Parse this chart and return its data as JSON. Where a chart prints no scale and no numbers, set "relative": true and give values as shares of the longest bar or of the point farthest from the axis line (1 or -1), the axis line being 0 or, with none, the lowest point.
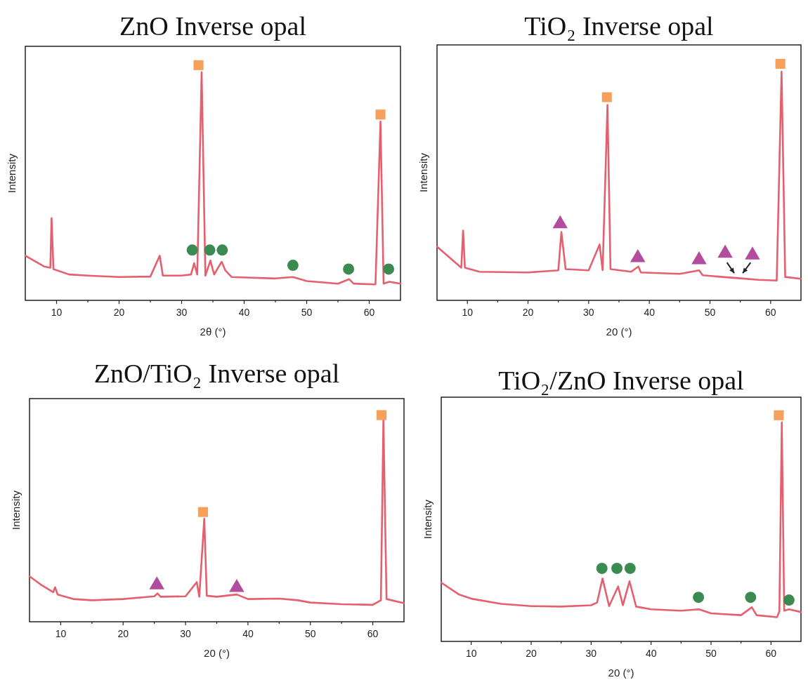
{
  "chart_data": [
    {
      "type": "line",
      "title": "ZnO Inverse opal",
      "xlabel": "2θ (°)",
      "ylabel": "Intensity",
      "relative": true,
      "tick_labels": "x",
      "xlim": [
        5,
        65
      ],
      "xticks": [
        10,
        {
          "value": 15,
          "label": null
        },
        20,
        {
          "value": 25,
          "label": null
        },
        30,
        {
          "value": 35,
          "label": null
        },
        40,
        {
          "value": 45,
          "label": null
        },
        50,
        {
          "value": 55,
          "label": null
        },
        60
      ],
      "series": [
        {
          "color": "#e5606e",
          "x": [
            5,
            8,
            9,
            9.2,
            9.5,
            12,
            15,
            20,
            25,
            26.5,
            27,
            30,
            31.5,
            32,
            32.5,
            33.2,
            33.8,
            34.6,
            35.2,
            36.4,
            37,
            38,
            45,
            47.8,
            50,
            55,
            56.8,
            57.5,
            61,
            61.8,
            62.3,
            63.2,
            65
          ],
          "values": [
            0.19,
            0.144,
            0.139,
            0.35,
            0.133,
            0.11,
            0.105,
            0.099,
            0.101,
            0.19,
            0.105,
            0.105,
            0.11,
            0.158,
            0.11,
            0.97,
            0.105,
            0.169,
            0.11,
            0.164,
            0.127,
            0.099,
            0.093,
            0.099,
            0.082,
            0.071,
            0.09,
            0.071,
            0.068,
            0.76,
            0.071,
            0.079,
            0.071
          ]
        },
        {
          "type": "scatter",
          "marker": "square",
          "color": "#f6a05c",
          "x": [
            32.7,
            61.8
          ],
          "values": [
            1,
            0.79
          ]
        },
        {
          "type": "scatter",
          "marker": "circle",
          "color": "#3a8a52",
          "x": [
            31.7,
            34.5,
            36.5,
            47.8,
            56.7,
            63.1
          ],
          "values": [
            0.214,
            0.214,
            0.214,
            0.149,
            0.133,
            0.133
          ]
        }
      ]
    },
    {
      "type": "line",
      "title": "TiO₂ Inverse opal",
      "xlabel": "20 (°)",
      "ylabel": "Intensity",
      "relative": true,
      "tick_labels": "x",
      "xlim": [
        5,
        65
      ],
      "xticks": [
        10,
        {
          "value": 15,
          "label": null
        },
        20,
        {
          "value": 25,
          "label": null
        },
        30,
        {
          "value": 35,
          "label": null
        },
        40,
        {
          "value": 45,
          "label": null
        },
        50,
        {
          "value": 55,
          "label": null
        },
        60
      ],
      "series": [
        {
          "color": "#e5606e",
          "x": [
            5,
            8,
            9,
            9.3,
            9.6,
            12,
            20,
            25,
            25.5,
            26.2,
            30,
            31.8,
            32.3,
            33.1,
            33.6,
            37,
            38.2,
            38.6,
            45,
            48.2,
            48.8,
            52,
            55,
            58,
            61,
            61.8,
            62.4,
            65
          ],
          "values": [
            0.227,
            0.16,
            0.138,
            0.295,
            0.138,
            0.121,
            0.118,
            0.127,
            0.289,
            0.132,
            0.127,
            0.236,
            0.128,
            0.826,
            0.132,
            0.121,
            0.143,
            0.118,
            0.112,
            0.127,
            0.106,
            0.099,
            0.093,
            0.087,
            0.084,
            0.967,
            0.099,
            0.091
          ]
        },
        {
          "type": "scatter",
          "marker": "square",
          "color": "#f6a05c",
          "x": [
            33,
            61.6
          ],
          "values": [
            0.859,
            1
          ]
        },
        {
          "type": "scatter",
          "marker": "triangle",
          "color": "#b24c9c",
          "x": [
            25.3,
            38.1,
            48.2,
            52.5,
            57
          ],
          "values": [
            0.323,
            0.18,
            0.171,
            0.199,
            0.191
          ]
        }
      ]
    },
    {
      "type": "line",
      "title": "ZnO/TiO₂ Inverse opal",
      "xlabel": "20 (°)",
      "ylabel": "Intensity",
      "relative": true,
      "tick_labels": "x",
      "xlim": [
        5,
        65
      ],
      "xticks": [
        10,
        {
          "value": 15,
          "label": null
        },
        20,
        {
          "value": 25,
          "label": null
        },
        30,
        {
          "value": 35,
          "label": null
        },
        40,
        {
          "value": 45,
          "label": null
        },
        50,
        {
          "value": 55,
          "label": null
        },
        60
      ],
      "series": [
        {
          "color": "#e5606e",
          "x": [
            5,
            7,
            8.8,
            9.1,
            9.5,
            12,
            15,
            20,
            25,
            25.5,
            26,
            30,
            31.8,
            32.2,
            33,
            33.4,
            35,
            38.2,
            40,
            45,
            48,
            50,
            55,
            60,
            61.3,
            61.7,
            62.2,
            65
          ],
          "values": [
            0.22,
            0.176,
            0.143,
            0.167,
            0.132,
            0.11,
            0.104,
            0.11,
            0.123,
            0.137,
            0.121,
            0.123,
            0.192,
            0.121,
            0.499,
            0.126,
            0.121,
            0.132,
            0.11,
            0.112,
            0.104,
            0.093,
            0.085,
            0.082,
            0.104,
            0.977,
            0.11,
            0.09
          ]
        },
        {
          "type": "scatter",
          "marker": "square",
          "color": "#f6a05c",
          "x": [
            32.8,
            61.4
          ],
          "values": [
            0.531,
            1
          ]
        },
        {
          "type": "scatter",
          "marker": "triangle",
          "color": "#b24c9c",
          "x": [
            25.4,
            38.2
          ],
          "values": [
            0.178,
            0.165
          ]
        }
      ]
    },
    {
      "type": "line",
      "title": "TiO₂/ZnO Inverse opal",
      "xlabel": "20 (°)",
      "ylabel": "Intensity",
      "relative": true,
      "tick_labels": "x",
      "xlim": [
        5,
        65
      ],
      "xticks": [
        10,
        {
          "value": 15,
          "label": null
        },
        20,
        {
          "value": 25,
          "label": null
        },
        30,
        {
          "value": 35,
          "label": null
        },
        40,
        {
          "value": 45,
          "label": null
        },
        50,
        {
          "value": 55,
          "label": null
        },
        60
      ],
      "series": [
        {
          "color": "#e5606e",
          "x": [
            5,
            8,
            10,
            15,
            20,
            25,
            30,
            31,
            31.9,
            33,
            34.5,
            35.3,
            36.4,
            37.5,
            40,
            45,
            48,
            50,
            55,
            56.8,
            57.6,
            61,
            61.4,
            61.8,
            62.2,
            63,
            65
          ],
          "values": [
            0.26,
            0.207,
            0.189,
            0.166,
            0.156,
            0.154,
            0.16,
            0.172,
            0.278,
            0.156,
            0.243,
            0.16,
            0.266,
            0.154,
            0.142,
            0.136,
            0.142,
            0.124,
            0.116,
            0.151,
            0.116,
            0.107,
            0.133,
            0.969,
            0.136,
            0.142,
            0.13
          ]
        },
        {
          "type": "scatter",
          "marker": "square",
          "color": "#f6a05c",
          "x": [
            61.3
          ],
          "values": [
            1
          ]
        },
        {
          "type": "scatter",
          "marker": "circle",
          "color": "#3a8a52",
          "x": [
            31.8,
            34.3,
            36.5,
            47.9,
            56.6,
            63
          ],
          "values": [
            0.323,
            0.323,
            0.323,
            0.195,
            0.195,
            0.183
          ]
        }
      ]
    }
  ]
}
